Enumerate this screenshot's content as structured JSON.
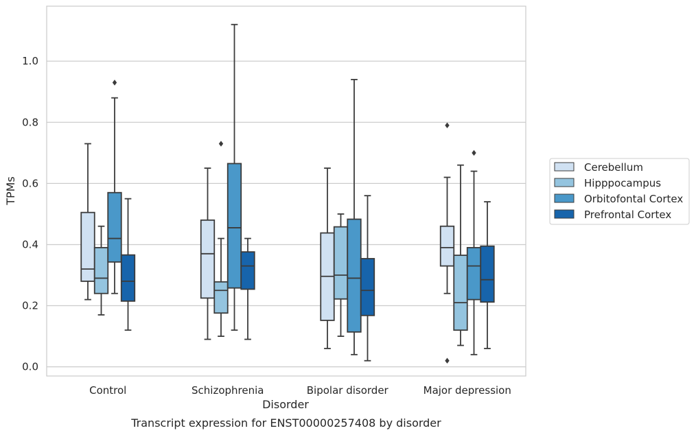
{
  "chart_data": {
    "type": "box",
    "title": "",
    "caption": "Transcript expression for ENST00000257408 by disorder",
    "xlabel": "Disorder",
    "ylabel": "TPMs",
    "ylim": [
      -0.03,
      1.18
    ],
    "yticks": [
      0.0,
      0.2,
      0.4,
      0.6,
      0.8,
      1.0
    ],
    "ytick_labels": [
      "0.0",
      "0.2",
      "0.4",
      "0.6",
      "0.8",
      "1.0"
    ],
    "grid": "horizontal",
    "legend_position": "right",
    "categories": [
      "Control",
      "Schizophrenia",
      "Bipolar disorder",
      "Major depression"
    ],
    "series": [
      {
        "name": "Cerebellum",
        "color": "#d0e1f2",
        "boxes": [
          {
            "whisker_low": 0.22,
            "q1": 0.28,
            "median": 0.32,
            "q3": 0.505,
            "whisker_high": 0.73,
            "outliers": []
          },
          {
            "whisker_low": 0.09,
            "q1": 0.225,
            "median": 0.37,
            "q3": 0.48,
            "whisker_high": 0.65,
            "outliers": []
          },
          {
            "whisker_low": 0.06,
            "q1": 0.152,
            "median": 0.296,
            "q3": 0.438,
            "whisker_high": 0.65,
            "outliers": []
          },
          {
            "whisker_low": 0.24,
            "q1": 0.33,
            "median": 0.39,
            "q3": 0.46,
            "whisker_high": 0.62,
            "outliers": [
              0.79,
              0.02
            ]
          }
        ]
      },
      {
        "name": "Hipppocampus",
        "color": "#94c4df",
        "boxes": [
          {
            "whisker_low": 0.17,
            "q1": 0.24,
            "median": 0.29,
            "q3": 0.39,
            "whisker_high": 0.46,
            "outliers": []
          },
          {
            "whisker_low": 0.1,
            "q1": 0.176,
            "median": 0.25,
            "q3": 0.278,
            "whisker_high": 0.42,
            "outliers": [
              0.73
            ]
          },
          {
            "whisker_low": 0.1,
            "q1": 0.222,
            "median": 0.3,
            "q3": 0.458,
            "whisker_high": 0.5,
            "outliers": []
          },
          {
            "whisker_low": 0.07,
            "q1": 0.12,
            "median": 0.21,
            "q3": 0.365,
            "whisker_high": 0.66,
            "outliers": []
          }
        ]
      },
      {
        "name": "Orbitofontal Cortex",
        "color": "#4a98c9",
        "boxes": [
          {
            "whisker_low": 0.24,
            "q1": 0.343,
            "median": 0.42,
            "q3": 0.57,
            "whisker_high": 0.88,
            "outliers": [
              0.93
            ]
          },
          {
            "whisker_low": 0.12,
            "q1": 0.258,
            "median": 0.455,
            "q3": 0.665,
            "whisker_high": 1.12,
            "outliers": []
          },
          {
            "whisker_low": 0.04,
            "q1": 0.114,
            "median": 0.29,
            "q3": 0.483,
            "whisker_high": 0.94,
            "outliers": []
          },
          {
            "whisker_low": 0.04,
            "q1": 0.22,
            "median": 0.33,
            "q3": 0.39,
            "whisker_high": 0.64,
            "outliers": [
              0.7
            ]
          }
        ]
      },
      {
        "name": "Prefrontal Cortex",
        "color": "#1764ab",
        "boxes": [
          {
            "whisker_low": 0.12,
            "q1": 0.215,
            "median": 0.28,
            "q3": 0.366,
            "whisker_high": 0.55,
            "outliers": []
          },
          {
            "whisker_low": 0.09,
            "q1": 0.254,
            "median": 0.33,
            "q3": 0.376,
            "whisker_high": 0.42,
            "outliers": []
          },
          {
            "whisker_low": 0.02,
            "q1": 0.168,
            "median": 0.25,
            "q3": 0.354,
            "whisker_high": 0.56,
            "outliers": []
          },
          {
            "whisker_low": 0.06,
            "q1": 0.212,
            "median": 0.285,
            "q3": 0.395,
            "whisker_high": 0.54,
            "outliers": []
          }
        ]
      }
    ]
  }
}
